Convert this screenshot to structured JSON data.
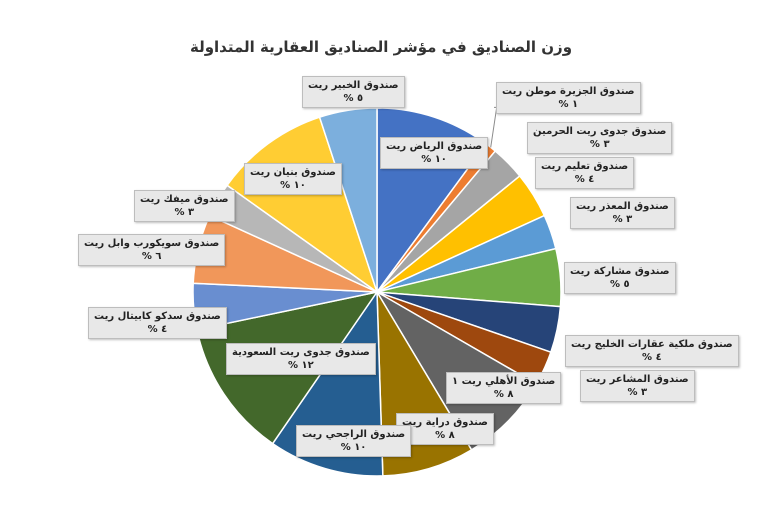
{
  "chart_data": {
    "type": "pie",
    "title": "وزن الصناديق في مؤشر الصناديق العقارية المتداولة",
    "slices": [
      {
        "name": "صندوق الرياض ريت",
        "value_label": "١٠ %",
        "value": 10,
        "color": "#4472C4"
      },
      {
        "name": "صندوق الجزيرة موطن ريت",
        "value_label": "١ %",
        "value": 1,
        "color": "#ED7D31"
      },
      {
        "name": "صندوق جدوى ريت الحرمين",
        "value_label": "٣ %",
        "value": 3,
        "color": "#A5A5A5"
      },
      {
        "name": "صندوق تعليم ريت",
        "value_label": "٤ %",
        "value": 4,
        "color": "#FFC000"
      },
      {
        "name": "صندوق المعذر ريت",
        "value_label": "٣ %",
        "value": 3,
        "color": "#5B9BD5"
      },
      {
        "name": "صندوق مشاركة ريت",
        "value_label": "٥ %",
        "value": 5,
        "color": "#70AD47"
      },
      {
        "name": "صندوق ملكية عقارات الخليج ريت",
        "value_label": "٤ %",
        "value": 4,
        "color": "#264478"
      },
      {
        "name": "صندوق المشاعر ريت",
        "value_label": "٣ %",
        "value": 3,
        "color": "#9E480E"
      },
      {
        "name": "صندوق الأهلي ريت ١",
        "value_label": "٨ %",
        "value": 8,
        "color": "#636363"
      },
      {
        "name": "صندوق دراية ريت",
        "value_label": "٨ %",
        "value": 8,
        "color": "#997300"
      },
      {
        "name": "صندوق الراجحي ريت",
        "value_label": "١٠ %",
        "value": 10,
        "color": "#255E91"
      },
      {
        "name": "صندوق جدوى ريت السعودية",
        "value_label": "١٢ %",
        "value": 12,
        "color": "#43682B"
      },
      {
        "name": "صندوق سدكو كابيتال ريت",
        "value_label": "٤ %",
        "value": 4,
        "color": "#698ED0"
      },
      {
        "name": "صندوق سويكورب وابل ريت",
        "value_label": "٦ %",
        "value": 6,
        "color": "#F1975A"
      },
      {
        "name": "صندوق ميفك ريت",
        "value_label": "٣ %",
        "value": 3,
        "color": "#B7B7B7"
      },
      {
        "name": "صندوق بنيان ريت",
        "value_label": "١٠ %",
        "value": 10,
        "color": "#FFCD33"
      },
      {
        "name": "صندوق الخبير ريت",
        "value_label": "٥ %",
        "value": 5,
        "color": "#7CAFDD"
      }
    ],
    "legend": "none"
  }
}
